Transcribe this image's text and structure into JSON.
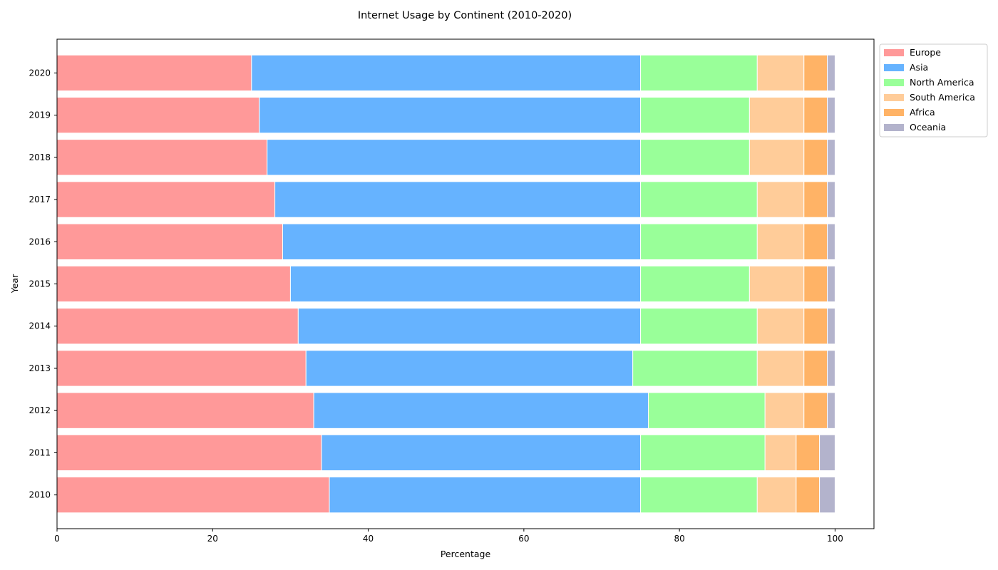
{
  "chart_data": {
    "type": "bar",
    "orientation": "horizontal",
    "stacked": true,
    "title": "Internet Usage by Continent (2010-2020)",
    "xlabel": "Percentage",
    "ylabel": "Year",
    "xlim": [
      0,
      105
    ],
    "x_ticks": [
      0,
      20,
      40,
      60,
      80,
      100
    ],
    "categories": [
      "2010",
      "2011",
      "2012",
      "2013",
      "2014",
      "2015",
      "2016",
      "2017",
      "2018",
      "2019",
      "2020"
    ],
    "series": [
      {
        "name": "Europe",
        "color": "#ff9999",
        "values": [
          35,
          34,
          33,
          32,
          31,
          30,
          29,
          28,
          27,
          26,
          25
        ]
      },
      {
        "name": "Asia",
        "color": "#66b3ff",
        "values": [
          40,
          41,
          43,
          42,
          44,
          45,
          46,
          47,
          48,
          49,
          50
        ]
      },
      {
        "name": "North America",
        "color": "#99ff99",
        "values": [
          15,
          16,
          15,
          16,
          15,
          14,
          15,
          15,
          14,
          14,
          15
        ]
      },
      {
        "name": "South America",
        "color": "#ffcc99",
        "values": [
          5,
          4,
          5,
          6,
          6,
          7,
          6,
          6,
          7,
          7,
          6
        ]
      },
      {
        "name": "Africa",
        "color": "#ffb366",
        "values": [
          3,
          3,
          3,
          3,
          3,
          3,
          3,
          3,
          3,
          3,
          3
        ]
      },
      {
        "name": "Oceania",
        "color": "#b3b3cc",
        "values": [
          2,
          2,
          1,
          1,
          1,
          1,
          1,
          1,
          1,
          1,
          1
        ]
      }
    ],
    "grid": false,
    "legend_position": "outside top-right"
  }
}
